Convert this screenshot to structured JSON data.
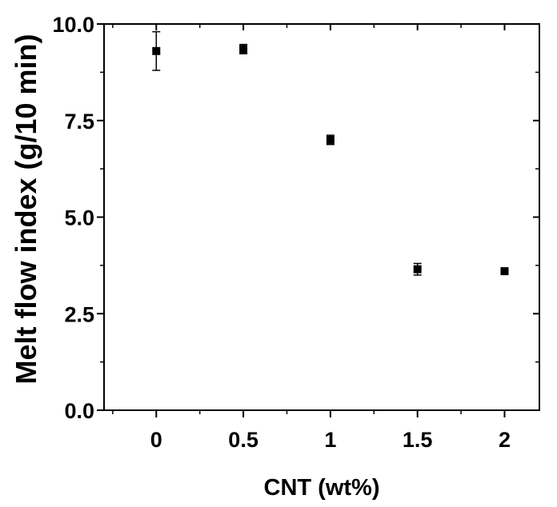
{
  "chart_data": {
    "type": "scatter",
    "title": "",
    "xlabel": "CNT (wt%)",
    "ylabel": "Melt flow index (g/10 min)",
    "xlim": [
      -0.3,
      2.2
    ],
    "ylim": [
      0,
      10
    ],
    "x_ticks": [
      "0",
      "0.5",
      "1",
      "1.5",
      "2"
    ],
    "y_ticks": [
      "0.0",
      "2.5",
      "5.0",
      "7.5",
      "10.0"
    ],
    "grid": false,
    "legend": false,
    "marker_color": "#000000",
    "points": [
      {
        "x": 0,
        "y": 9.3,
        "err": 0.5
      },
      {
        "x": 0.5,
        "y": 9.35,
        "err": 0.12
      },
      {
        "x": 1,
        "y": 7.0,
        "err": 0.12
      },
      {
        "x": 1.5,
        "y": 3.65,
        "err": 0.15
      },
      {
        "x": 2,
        "y": 3.6,
        "err": 0.06
      }
    ]
  }
}
